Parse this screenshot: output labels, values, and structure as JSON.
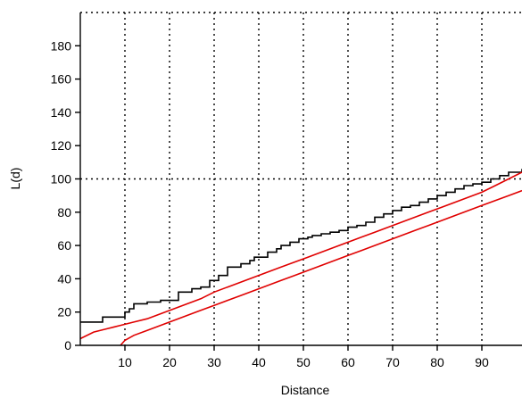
{
  "chart_data": {
    "type": "line",
    "title": "",
    "xlabel": "Distance",
    "ylabel": "L(d)",
    "xlim": [
      0,
      99
    ],
    "ylim": [
      0,
      200
    ],
    "x_ticks": [
      10,
      20,
      30,
      40,
      50,
      60,
      70,
      80,
      90
    ],
    "y_ticks": [
      0,
      20,
      40,
      60,
      80,
      100,
      120,
      140,
      160,
      180
    ],
    "grid": "dotted vertical lines at each x tick; dotted horizontal line at y=100; dotted top border",
    "legend": "none",
    "series": [
      {
        "color": "#000000",
        "style": "step",
        "points": [
          [
            0,
            14
          ],
          [
            4,
            14
          ],
          [
            5,
            17
          ],
          [
            9,
            17
          ],
          [
            10,
            20
          ],
          [
            11,
            22
          ],
          [
            12,
            25
          ],
          [
            15,
            26
          ],
          [
            18,
            27
          ],
          [
            21,
            27
          ],
          [
            22,
            32
          ],
          [
            25,
            34
          ],
          [
            27,
            35
          ],
          [
            29,
            39
          ],
          [
            31,
            42
          ],
          [
            32,
            42
          ],
          [
            33,
            47
          ],
          [
            36,
            49
          ],
          [
            38,
            51
          ],
          [
            39,
            53
          ],
          [
            42,
            56
          ],
          [
            44,
            58
          ],
          [
            45,
            60
          ],
          [
            47,
            62
          ],
          [
            49,
            64
          ],
          [
            51,
            65
          ],
          [
            52,
            66
          ],
          [
            54,
            67
          ],
          [
            56,
            68
          ],
          [
            58,
            69
          ],
          [
            60,
            71
          ],
          [
            62,
            72
          ],
          [
            64,
            74
          ],
          [
            66,
            77
          ],
          [
            68,
            79
          ],
          [
            70,
            81
          ],
          [
            72,
            83
          ],
          [
            74,
            84
          ],
          [
            76,
            86
          ],
          [
            78,
            88
          ],
          [
            80,
            90
          ],
          [
            82,
            92
          ],
          [
            84,
            94
          ],
          [
            86,
            96
          ],
          [
            88,
            97
          ],
          [
            90,
            98
          ],
          [
            92,
            100
          ],
          [
            94,
            102
          ],
          [
            96,
            104
          ],
          [
            99,
            106
          ]
        ]
      },
      {
        "color": "#e00000",
        "style": "line",
        "points": [
          [
            0,
            4
          ],
          [
            3,
            8
          ],
          [
            6,
            10
          ],
          [
            9,
            12
          ],
          [
            12,
            14
          ],
          [
            15,
            16
          ],
          [
            18,
            19
          ],
          [
            21,
            22
          ],
          [
            24,
            25
          ],
          [
            27,
            28
          ],
          [
            30,
            32
          ],
          [
            33,
            35
          ],
          [
            36,
            38
          ],
          [
            39,
            41
          ],
          [
            42,
            44
          ],
          [
            45,
            47
          ],
          [
            48,
            50
          ],
          [
            51,
            53
          ],
          [
            54,
            56
          ],
          [
            57,
            59
          ],
          [
            60,
            62
          ],
          [
            63,
            65
          ],
          [
            66,
            68
          ],
          [
            69,
            71
          ],
          [
            72,
            74
          ],
          [
            75,
            77
          ],
          [
            78,
            80
          ],
          [
            81,
            83
          ],
          [
            84,
            86
          ],
          [
            87,
            89
          ],
          [
            90,
            92
          ],
          [
            93,
            96
          ],
          [
            96,
            100
          ],
          [
            99,
            104
          ]
        ]
      },
      {
        "color": "#e00000",
        "style": "line",
        "points": [
          [
            9,
            0
          ],
          [
            10,
            3
          ],
          [
            12,
            6
          ],
          [
            15,
            9
          ],
          [
            18,
            12
          ],
          [
            21,
            15
          ],
          [
            24,
            18
          ],
          [
            27,
            21
          ],
          [
            30,
            24
          ],
          [
            33,
            27
          ],
          [
            36,
            30
          ],
          [
            39,
            33
          ],
          [
            42,
            36
          ],
          [
            45,
            39
          ],
          [
            48,
            42
          ],
          [
            51,
            45
          ],
          [
            54,
            48
          ],
          [
            57,
            51
          ],
          [
            60,
            54
          ],
          [
            63,
            57
          ],
          [
            66,
            60
          ],
          [
            69,
            63
          ],
          [
            72,
            66
          ],
          [
            75,
            69
          ],
          [
            78,
            72
          ],
          [
            81,
            75
          ],
          [
            84,
            78
          ],
          [
            87,
            81
          ],
          [
            90,
            84
          ],
          [
            93,
            87
          ],
          [
            96,
            90
          ],
          [
            99,
            93
          ]
        ]
      }
    ]
  }
}
